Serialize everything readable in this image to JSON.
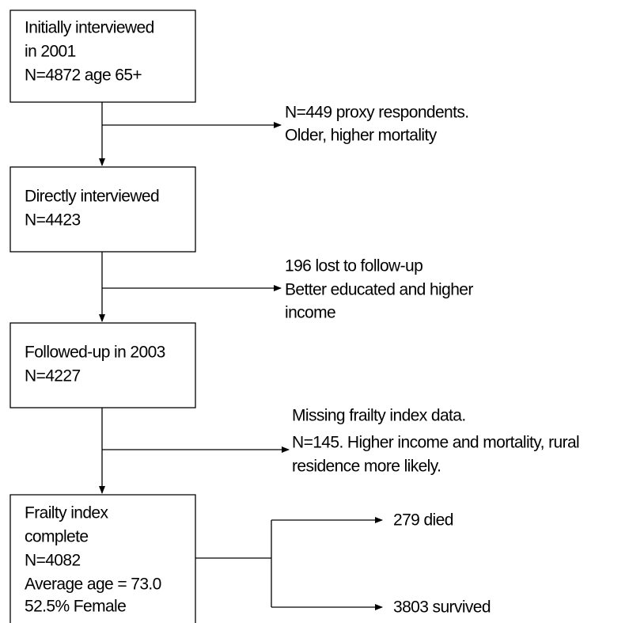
{
  "nodes": [
    {
      "lines": [
        "Initially interviewed",
        "in 2001",
        "N=4872 age 65+"
      ]
    },
    {
      "lines": [
        "Directly interviewed",
        "N=4423"
      ]
    },
    {
      "lines": [
        "Followed-up in 2003",
        "N=4227"
      ]
    },
    {
      "lines": [
        "Frailty index",
        "complete",
        "N=4082",
        "Average age = 73.0",
        "52.5% Female"
      ]
    }
  ],
  "exclusions": [
    {
      "lines": [
        "N=449 proxy respondents.",
        "Older, higher mortality"
      ]
    },
    {
      "lines": [
        "196 lost to follow-up",
        "Better educated and higher",
        "income"
      ]
    },
    {
      "lines": [
        "Missing frailty index data.",
        "N=145. Higher income and mortality, rural",
        "residence more likely."
      ]
    }
  ],
  "outcomes": [
    {
      "label": "279 died"
    },
    {
      "label": "3803 survived"
    }
  ]
}
